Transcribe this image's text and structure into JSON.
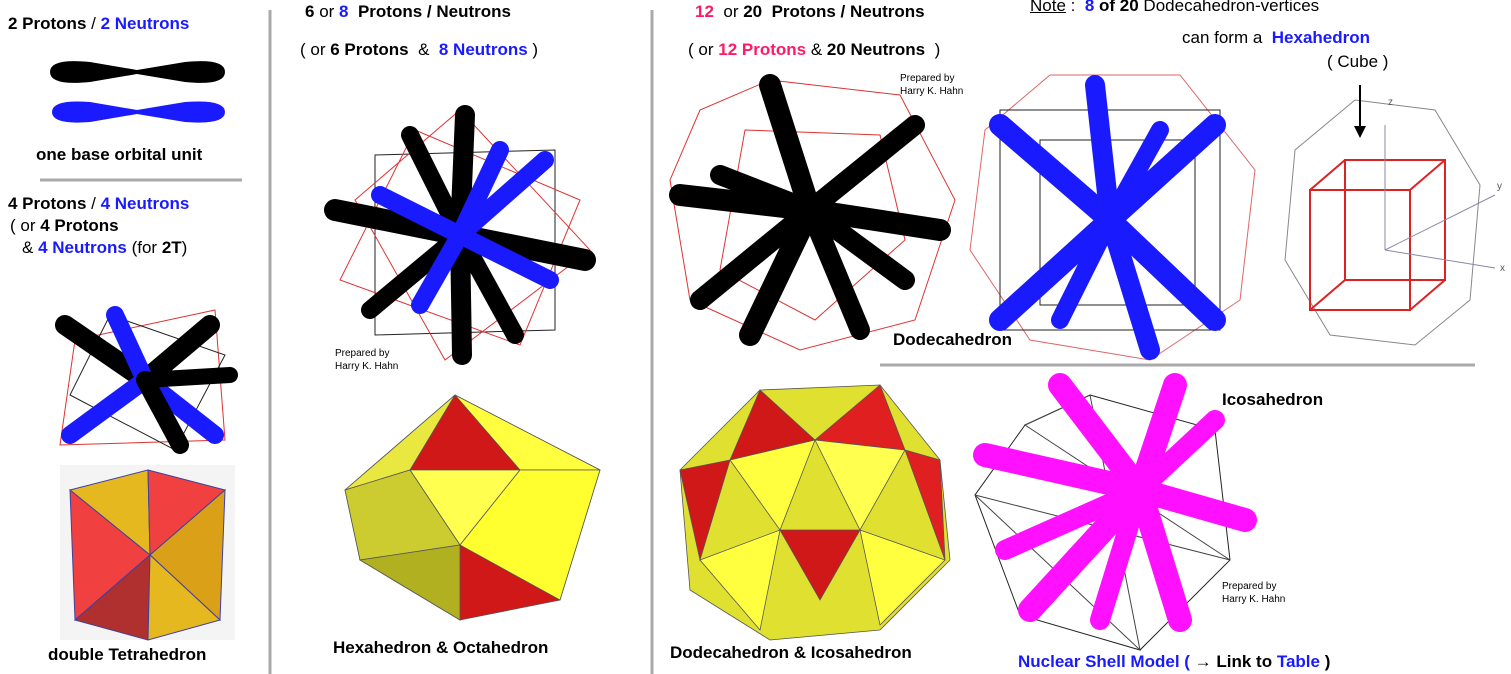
{
  "col1": {
    "line1": [
      "2 Protons",
      " / ",
      "2 Neutrons"
    ],
    "caption1": "one base orbital unit",
    "line2": [
      "4 Protons",
      " / ",
      "4 Neutrons"
    ],
    "line3": [
      "( or ",
      "4 Protons"
    ],
    "line4": [
      "& ",
      "4 Neutrons",
      " (for ",
      "2T",
      ")"
    ],
    "caption2": "double Tetrahedron"
  },
  "col2": {
    "line1": [
      "6",
      " or ",
      "8",
      "  Protons / Neutrons"
    ],
    "line2": [
      "( or ",
      "6 Protons",
      "  &  ",
      "8 Neutrons",
      " )"
    ],
    "credit": [
      "Prepared by",
      "Harry K. Hahn"
    ],
    "caption": "Hexahedron & Octahedron"
  },
  "col3": {
    "line1": [
      "12",
      "  or ",
      "20",
      "  Protons / Neutrons"
    ],
    "line2": [
      "( or ",
      "12 Protons",
      " & ",
      "20 Neutrons",
      "  )"
    ],
    "credit1": [
      "Prepared by",
      "Harry K. Hahn"
    ],
    "label_dodeca": "Dodecahedron",
    "caption": "Dodecahedron & Icosahedron",
    "note": [
      "Note",
      " :  ",
      "8",
      " of 20",
      " Dodecahedron-vertices"
    ],
    "note2": [
      "can form a  ",
      "Hexahedron"
    ],
    "note3": "( Cube )",
    "axes": [
      "z",
      "y",
      "x"
    ],
    "label_icosa": "Icosahedron",
    "credit2": [
      "Prepared by",
      "Harry K. Hahn"
    ],
    "link": [
      "Nuclear Shell Model ( ",
      "→",
      " Link to ",
      "Table",
      " )"
    ]
  }
}
